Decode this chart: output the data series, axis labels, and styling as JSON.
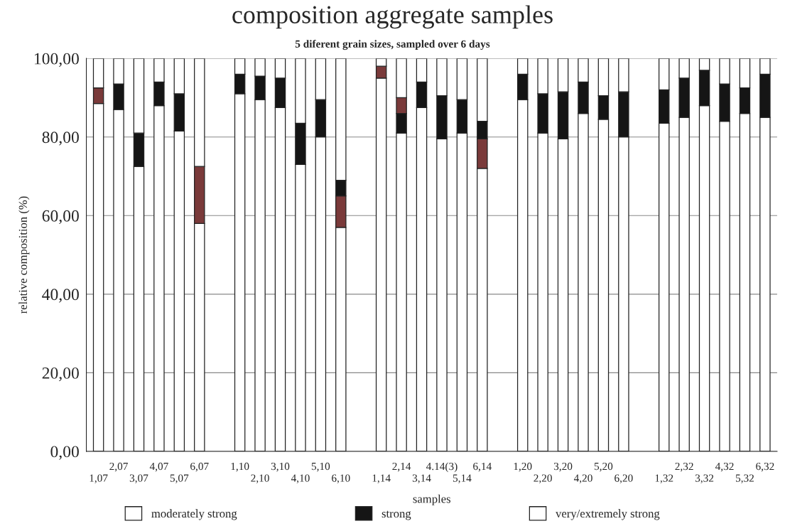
{
  "chart_data": {
    "type": "bar",
    "stacked": true,
    "title": "composition aggregate samples",
    "subtitle": "5 diferent grain sizes, sampled over 6 days",
    "xlabel": "samples",
    "ylabel": "relative composition (%)",
    "categories": [
      "1,07",
      "2,07",
      "3,07",
      "4,07",
      "5,07",
      "6,07",
      null,
      "1,10",
      "2,10",
      "3,10",
      "4,10",
      "5,10",
      "6,10",
      null,
      "1,14",
      "2,14",
      "3,14",
      "4.14(3)",
      "5,14",
      "6,14",
      null,
      "1,20",
      "2,20",
      "3,20",
      "4,20",
      "5,20",
      "6,20",
      null,
      "1,32",
      "2,32",
      "3,32",
      "4,32",
      "5,32",
      "6,32"
    ],
    "series": [
      {
        "name": "moderately strong",
        "color": "#ffffff",
        "values": [
          88.5,
          87,
          72.5,
          88,
          81.5,
          58,
          null,
          91,
          89.5,
          87.5,
          73,
          80,
          57,
          null,
          95,
          81,
          87.5,
          79.5,
          81,
          72,
          null,
          89.5,
          81,
          79.5,
          86,
          84.5,
          80,
          null,
          83.5,
          85,
          88,
          84,
          86,
          85
        ]
      },
      {
        "color": "#7a3a3a",
        "values": [
          4,
          null,
          null,
          null,
          null,
          14.5,
          null,
          null,
          null,
          null,
          null,
          null,
          8,
          null,
          3,
          null,
          null,
          null,
          null,
          7.5,
          null,
          null,
          null,
          null,
          null,
          null,
          null,
          null,
          null,
          null,
          null,
          null,
          null,
          null
        ]
      },
      {
        "name": "strong",
        "color": "#151515",
        "values": [
          null,
          6.5,
          8.5,
          6,
          9.5,
          null,
          null,
          5,
          6,
          7.5,
          10.5,
          9.5,
          4,
          null,
          null,
          5,
          6.5,
          11,
          8.5,
          4.5,
          null,
          6.5,
          10,
          12,
          8,
          6,
          11.5,
          null,
          8.5,
          10,
          9,
          9.5,
          6.5,
          11
        ]
      },
      {
        "color": "#7a3a3a",
        "values": [
          null,
          null,
          null,
          null,
          null,
          null,
          null,
          null,
          null,
          null,
          null,
          null,
          null,
          null,
          null,
          4,
          null,
          null,
          null,
          null,
          null,
          null,
          null,
          null,
          null,
          null,
          null,
          null,
          null,
          null,
          null,
          null,
          null,
          null
        ]
      },
      {
        "name": "very/extremely strong",
        "color": "#ffffff",
        "values": [
          7.5,
          6.5,
          19,
          6,
          9,
          27.5,
          null,
          4,
          4.5,
          5,
          16.5,
          10.5,
          31,
          null,
          2,
          10,
          6,
          9.5,
          10.5,
          16,
          null,
          4,
          9,
          8.5,
          6,
          9.5,
          8.5,
          null,
          8,
          5,
          3,
          6.5,
          7.5,
          4
        ]
      }
    ],
    "ylim": [
      0,
      100
    ],
    "yticks": [
      {
        "value": 0,
        "label": "0,00"
      },
      {
        "value": 20,
        "label": "20,00"
      },
      {
        "value": 40,
        "label": "40,00"
      },
      {
        "value": 60,
        "label": "60,00"
      },
      {
        "value": 80,
        "label": "80,00"
      },
      {
        "value": 100,
        "label": "100,00"
      }
    ],
    "grid": "y",
    "legend": "bottom"
  }
}
